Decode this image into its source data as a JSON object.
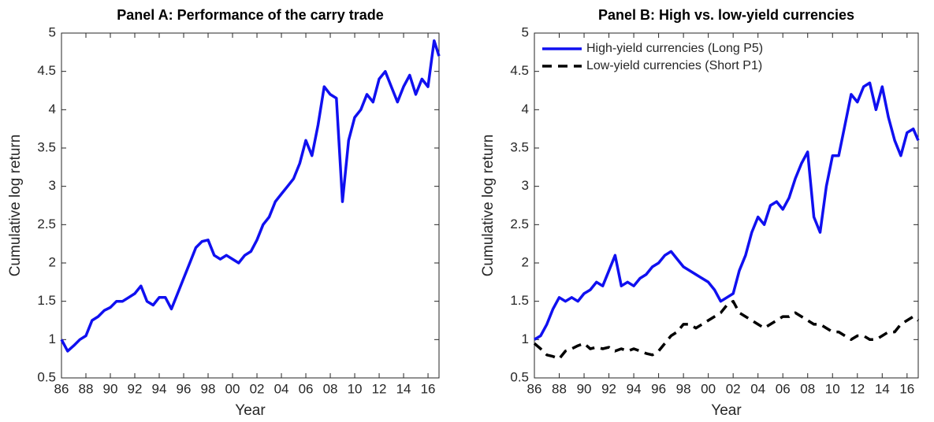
{
  "chart_data": [
    {
      "type": "line",
      "title": "Panel A: Performance of the carry trade",
      "xlabel": "Year",
      "ylabel": "Cumulative log return",
      "x": [
        1986,
        1986.5,
        1987,
        1987.5,
        1988,
        1988.5,
        1989,
        1989.5,
        1990,
        1990.5,
        1991,
        1991.5,
        1992,
        1992.5,
        1993,
        1993.5,
        1994,
        1994.5,
        1995,
        1995.5,
        1996,
        1996.5,
        1997,
        1997.5,
        1998,
        1998.5,
        1999,
        1999.5,
        2000,
        2000.5,
        2001,
        2001.5,
        2002,
        2002.5,
        2003,
        2003.5,
        2004,
        2004.5,
        2005,
        2005.5,
        2006,
        2006.5,
        2007,
        2007.5,
        2008,
        2008.5,
        2009,
        2009.5,
        2010,
        2010.5,
        2011,
        2011.5,
        2012,
        2012.5,
        2013,
        2013.5,
        2014,
        2014.5,
        2015,
        2015.5,
        2016,
        2016.5,
        2016.9
      ],
      "series": [
        {
          "color": "#1010f0",
          "values": [
            1.0,
            0.85,
            0.92,
            1.0,
            1.05,
            1.25,
            1.3,
            1.38,
            1.42,
            1.5,
            1.5,
            1.55,
            1.6,
            1.7,
            1.5,
            1.45,
            1.55,
            1.55,
            1.4,
            1.6,
            1.8,
            2.0,
            2.2,
            2.28,
            2.3,
            2.1,
            2.05,
            2.1,
            2.05,
            2.0,
            2.1,
            2.15,
            2.3,
            2.5,
            2.6,
            2.8,
            2.9,
            3.0,
            3.1,
            3.3,
            3.6,
            3.4,
            3.8,
            4.3,
            4.2,
            4.15,
            2.8,
            3.6,
            3.9,
            4.0,
            4.2,
            4.1,
            4.4,
            4.5,
            4.3,
            4.1,
            4.3,
            4.45,
            4.2,
            4.4,
            4.3,
            4.9,
            4.7
          ]
        }
      ],
      "xlim": [
        1986,
        2016.9
      ],
      "ylim": [
        0.5,
        5
      ],
      "xticks": [
        {
          "value": 1986,
          "label": "86"
        },
        {
          "value": 1988,
          "label": "88"
        },
        {
          "value": 1990,
          "label": "90"
        },
        {
          "value": 1992,
          "label": "92"
        },
        {
          "value": 1994,
          "label": "94"
        },
        {
          "value": 1996,
          "label": "96"
        },
        {
          "value": 1998,
          "label": "98"
        },
        {
          "value": 2000,
          "label": "00"
        },
        {
          "value": 2002,
          "label": "02"
        },
        {
          "value": 2004,
          "label": "04"
        },
        {
          "value": 2006,
          "label": "06"
        },
        {
          "value": 2008,
          "label": "08"
        },
        {
          "value": 2010,
          "label": "10"
        },
        {
          "value": 2012,
          "label": "12"
        },
        {
          "value": 2014,
          "label": "14"
        },
        {
          "value": 2016,
          "label": "16"
        }
      ],
      "yticks": [
        0.5,
        1,
        1.5,
        2,
        2.5,
        3,
        3.5,
        4,
        4.5,
        5
      ]
    },
    {
      "type": "line",
      "title": "Panel B: High vs. low-yield currencies",
      "xlabel": "Year",
      "ylabel": "Cumulative log return",
      "x": [
        1986,
        1986.5,
        1987,
        1987.5,
        1988,
        1988.5,
        1989,
        1989.5,
        1990,
        1990.5,
        1991,
        1991.5,
        1992,
        1992.5,
        1993,
        1993.5,
        1994,
        1994.5,
        1995,
        1995.5,
        1996,
        1996.5,
        1997,
        1997.5,
        1998,
        1998.5,
        1999,
        1999.5,
        2000,
        2000.5,
        2001,
        2001.5,
        2002,
        2002.5,
        2003,
        2003.5,
        2004,
        2004.5,
        2005,
        2005.5,
        2006,
        2006.5,
        2007,
        2007.5,
        2008,
        2008.5,
        2009,
        2009.5,
        2010,
        2010.5,
        2011,
        2011.5,
        2012,
        2012.5,
        2013,
        2013.5,
        2014,
        2014.5,
        2015,
        2015.5,
        2016,
        2016.5,
        2016.9
      ],
      "series": [
        {
          "name": "High-yield currencies (Long P5)",
          "color": "#1010f0",
          "style": "solid",
          "values": [
            1.0,
            1.05,
            1.2,
            1.4,
            1.55,
            1.5,
            1.55,
            1.5,
            1.6,
            1.65,
            1.75,
            1.7,
            1.9,
            2.1,
            1.7,
            1.75,
            1.7,
            1.8,
            1.85,
            1.95,
            2.0,
            2.1,
            2.15,
            2.05,
            1.95,
            1.9,
            1.85,
            1.8,
            1.75,
            1.65,
            1.5,
            1.55,
            1.6,
            1.9,
            2.1,
            2.4,
            2.6,
            2.5,
            2.75,
            2.8,
            2.7,
            2.85,
            3.1,
            3.3,
            3.45,
            2.6,
            2.4,
            3.0,
            3.4,
            3.4,
            3.8,
            4.2,
            4.1,
            4.3,
            4.35,
            4.0,
            4.3,
            3.9,
            3.6,
            3.4,
            3.7,
            3.75,
            3.6
          ]
        },
        {
          "name": "Low-yield currencies (Short P1)",
          "color": "#000000",
          "style": "dashed",
          "values": [
            0.95,
            0.88,
            0.8,
            0.78,
            0.75,
            0.85,
            0.88,
            0.92,
            0.95,
            0.88,
            0.9,
            0.88,
            0.9,
            0.85,
            0.88,
            0.85,
            0.88,
            0.85,
            0.82,
            0.8,
            0.85,
            0.95,
            1.05,
            1.1,
            1.2,
            1.2,
            1.15,
            1.2,
            1.25,
            1.3,
            1.35,
            1.45,
            1.5,
            1.35,
            1.3,
            1.25,
            1.2,
            1.15,
            1.2,
            1.25,
            1.3,
            1.3,
            1.35,
            1.3,
            1.25,
            1.2,
            1.2,
            1.15,
            1.1,
            1.1,
            1.05,
            1.0,
            1.05,
            1.05,
            1.0,
            1.0,
            1.05,
            1.1,
            1.1,
            1.2,
            1.25,
            1.3,
            1.25
          ]
        }
      ],
      "legend": "upper left",
      "xlim": [
        1986,
        2016.9
      ],
      "ylim": [
        0.5,
        5
      ],
      "xticks": [
        {
          "value": 1986,
          "label": "86"
        },
        {
          "value": 1988,
          "label": "88"
        },
        {
          "value": 1990,
          "label": "90"
        },
        {
          "value": 1992,
          "label": "92"
        },
        {
          "value": 1994,
          "label": "94"
        },
        {
          "value": 1996,
          "label": "96"
        },
        {
          "value": 1998,
          "label": "98"
        },
        {
          "value": 2000,
          "label": "00"
        },
        {
          "value": 2002,
          "label": "02"
        },
        {
          "value": 2004,
          "label": "04"
        },
        {
          "value": 2006,
          "label": "06"
        },
        {
          "value": 2008,
          "label": "08"
        },
        {
          "value": 2010,
          "label": "10"
        },
        {
          "value": 2012,
          "label": "12"
        },
        {
          "value": 2014,
          "label": "14"
        },
        {
          "value": 2016,
          "label": "16"
        }
      ],
      "yticks": [
        0.5,
        1,
        1.5,
        2,
        2.5,
        3,
        3.5,
        4,
        4.5,
        5
      ]
    }
  ]
}
